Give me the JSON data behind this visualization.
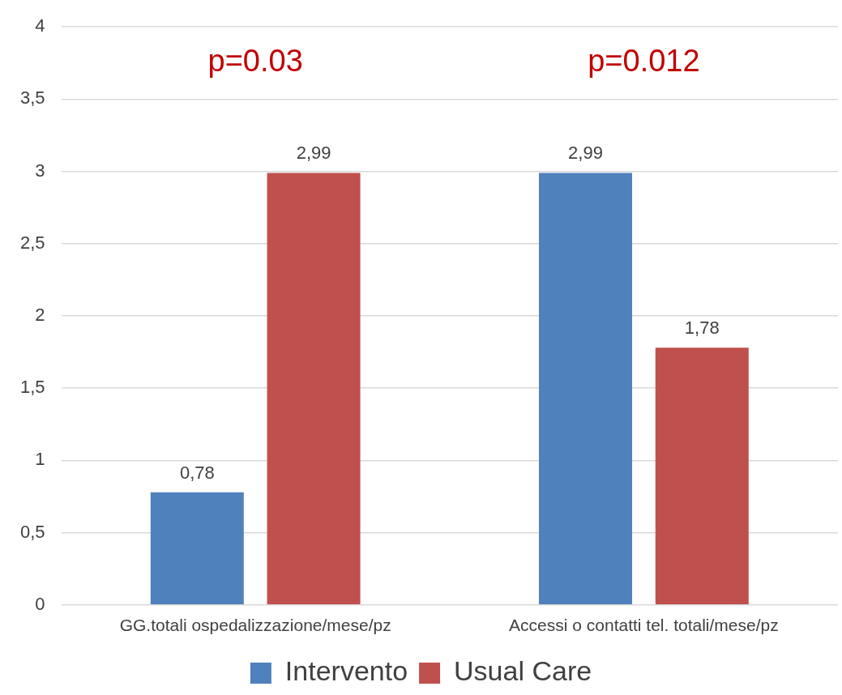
{
  "chart_data": {
    "type": "bar",
    "categories": [
      "GG.totali ospedalizzazione/mese/pz",
      "Accessi o contatti tel. totali/mese/pz"
    ],
    "series": [
      {
        "name": "Intervento",
        "color": "#4f81bd",
        "values": [
          0.78,
          2.99
        ],
        "value_labels": [
          "0,78",
          "2,99"
        ]
      },
      {
        "name": "Usual Care",
        "color": "#c0504d",
        "values": [
          2.99,
          1.78
        ],
        "value_labels": [
          "2,99",
          "1,78"
        ]
      }
    ],
    "ylim": [
      0,
      4
    ],
    "yticks": [
      0,
      {
        "value": 0.5,
        "label": "0,5"
      },
      1,
      {
        "value": 1.5,
        "label": "1,5"
      },
      2,
      {
        "value": 2.5,
        "label": "2,5"
      },
      3,
      {
        "value": 3.5,
        "label": "3,5"
      },
      4
    ],
    "grid": "y",
    "legend": "bottom",
    "annotations": [
      "p=0.03",
      "p=0.012"
    ]
  }
}
